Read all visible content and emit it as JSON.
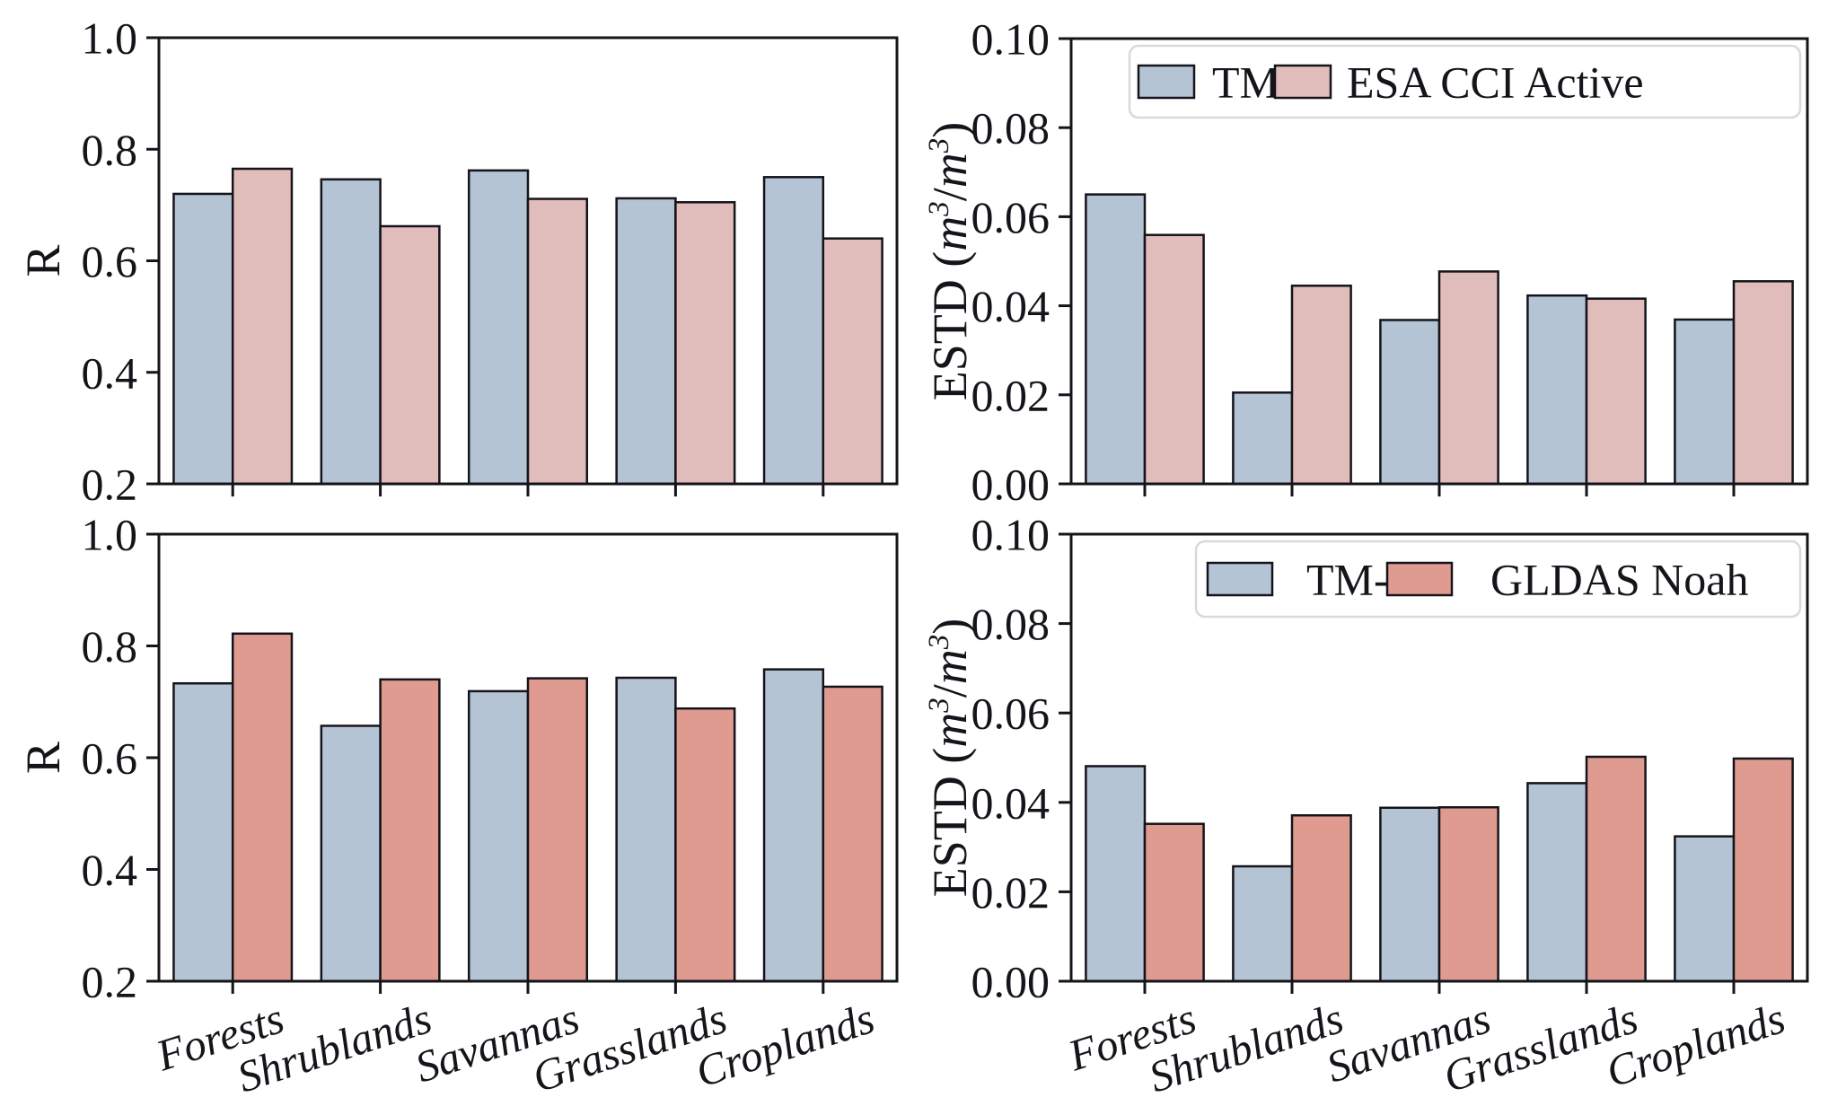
{
  "figure": {
    "background": "#ffffff",
    "edge_color": "#14141a",
    "tick_color": "#14141a",
    "legend_border_color": "#d9d9d9",
    "categories": [
      "Forests",
      "Shrublands",
      "Savannas",
      "Grasslands",
      "Croplands"
    ]
  },
  "chart_data": [
    {
      "id": "r-tm1-vs-esa-cci-active",
      "type": "bar",
      "position": "top-left",
      "categories": [
        "Forests",
        "Shrublands",
        "Savannas",
        "Grasslands",
        "Croplands"
      ],
      "series": [
        {
          "name": "TM-1",
          "color": "#b5c4d5",
          "values": [
            0.72,
            0.746,
            0.762,
            0.712,
            0.75
          ]
        },
        {
          "name": "ESA CCI Active",
          "color": "#e0bcba",
          "values": [
            0.765,
            0.662,
            0.711,
            0.705,
            0.64
          ]
        }
      ],
      "ylabel_parts": [
        {
          "t": "R",
          "style": "normal"
        }
      ],
      "ylim": [
        0.2,
        1.0
      ],
      "yticks": [
        0.2,
        0.4,
        0.6,
        0.8,
        1.0
      ],
      "ytick_labels": [
        "0.2",
        "0.4",
        "0.6",
        "0.8",
        "1.0"
      ],
      "grid": false,
      "show_xlabels": false,
      "legend": false
    },
    {
      "id": "estd-tm1-vs-esa-cci-active",
      "type": "bar",
      "position": "top-right",
      "categories": [
        "Forests",
        "Shrublands",
        "Savannas",
        "Grasslands",
        "Croplands"
      ],
      "series": [
        {
          "name": "TM-1",
          "color": "#b5c4d5",
          "values": [
            0.065,
            0.0205,
            0.0368,
            0.0423,
            0.0369
          ]
        },
        {
          "name": "ESA CCI Active",
          "color": "#e0bcba",
          "values": [
            0.0559,
            0.0445,
            0.0477,
            0.0416,
            0.0455
          ]
        }
      ],
      "ylabel_parts": [
        {
          "t": "ESTD (",
          "style": "normal"
        },
        {
          "t": "m",
          "style": "italic"
        },
        {
          "t": "3",
          "style": "super"
        },
        {
          "t": "/",
          "style": "normal"
        },
        {
          "t": "m",
          "style": "italic"
        },
        {
          "t": "3",
          "style": "super"
        },
        {
          "t": ")",
          "style": "normal"
        }
      ],
      "ylim": [
        0.0,
        0.1
      ],
      "yticks": [
        0.0,
        0.02,
        0.04,
        0.06,
        0.08,
        0.1
      ],
      "ytick_labels": [
        "0.00",
        "0.02",
        "0.04",
        "0.06",
        "0.08",
        "0.10"
      ],
      "grid": false,
      "show_xlabels": false,
      "legend": true,
      "legend_position": "upper-right"
    },
    {
      "id": "r-tm1-vs-gldas-noah",
      "type": "bar",
      "position": "bottom-left",
      "categories": [
        "Forests",
        "Shrublands",
        "Savannas",
        "Grasslands",
        "Croplands"
      ],
      "series": [
        {
          "name": "TM-1",
          "color": "#b5c4d5",
          "values": [
            0.733,
            0.657,
            0.719,
            0.743,
            0.758
          ]
        },
        {
          "name": "GLDAS Noah",
          "color": "#e09b91",
          "values": [
            0.822,
            0.74,
            0.742,
            0.688,
            0.727
          ]
        }
      ],
      "ylabel_parts": [
        {
          "t": "R",
          "style": "normal"
        }
      ],
      "ylim": [
        0.2,
        1.0
      ],
      "yticks": [
        0.2,
        0.4,
        0.6,
        0.8,
        1.0
      ],
      "ytick_labels": [
        "0.2",
        "0.4",
        "0.6",
        "0.8",
        "1.0"
      ],
      "grid": false,
      "show_xlabels": true,
      "legend": false
    },
    {
      "id": "estd-tm1-vs-gldas-noah",
      "type": "bar",
      "position": "bottom-right",
      "categories": [
        "Forests",
        "Shrublands",
        "Savannas",
        "Grasslands",
        "Croplands"
      ],
      "series": [
        {
          "name": "TM-1",
          "color": "#b5c4d5",
          "values": [
            0.0481,
            0.0257,
            0.0388,
            0.0443,
            0.0324
          ]
        },
        {
          "name": "GLDAS Noah",
          "color": "#e09b91",
          "values": [
            0.0352,
            0.0371,
            0.0389,
            0.0502,
            0.0498
          ]
        }
      ],
      "ylabel_parts": [
        {
          "t": "ESTD (",
          "style": "normal"
        },
        {
          "t": "m",
          "style": "italic"
        },
        {
          "t": "3",
          "style": "super"
        },
        {
          "t": "/",
          "style": "normal"
        },
        {
          "t": "m",
          "style": "italic"
        },
        {
          "t": "3",
          "style": "super"
        },
        {
          "t": ")",
          "style": "normal"
        }
      ],
      "ylim": [
        0.0,
        0.1
      ],
      "yticks": [
        0.0,
        0.02,
        0.04,
        0.06,
        0.08,
        0.1
      ],
      "ytick_labels": [
        "0.00",
        "0.02",
        "0.04",
        "0.06",
        "0.08",
        "0.10"
      ],
      "grid": false,
      "show_xlabels": true,
      "legend": true,
      "legend_position": "upper-right"
    }
  ]
}
